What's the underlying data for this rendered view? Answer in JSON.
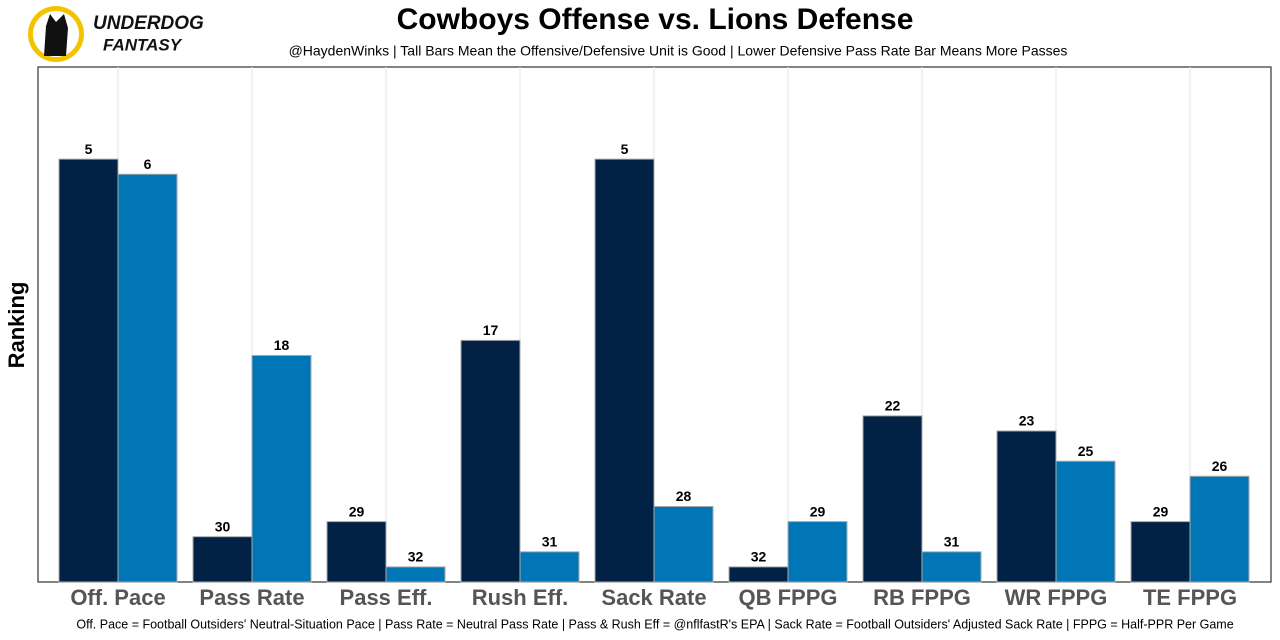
{
  "logo": {
    "line1": "UNDERDOG",
    "line2": "FANTASY"
  },
  "chart_data": {
    "type": "bar",
    "title": "Cowboys Offense vs. Lions Defense",
    "subtitle": "@HaydenWinks | Tall Bars Mean the Offensive/Defensive Unit is Good | Lower Defensive Pass Rate Bar Means More Passes",
    "y_label": "Ranking",
    "caption": "Off. Pace = Football Outsiders' Neutral-Situation Pace | Pass Rate = Neutral Pass Rate | Pass & Rush Eff = @nflfastR's EPA | Sack Rate = Football Outsiders' Adjusted Sack Rate | FPPG = Half-PPR Per Game",
    "categories": [
      "Off. Pace",
      "Pass Rate",
      "Pass Eff.",
      "Rush Eff.",
      "Sack Rate",
      "QB FPPG",
      "RB FPPG",
      "WR FPPG",
      "TE FPPG"
    ],
    "series": [
      {
        "color": "#012244",
        "values": [
          5,
          30,
          29,
          17,
          5,
          32,
          22,
          23,
          29
        ]
      },
      {
        "color": "#0076b6",
        "values": [
          6,
          18,
          32,
          31,
          28,
          29,
          31,
          25,
          26
        ]
      }
    ],
    "ylim": [
      33,
      -1.1
    ],
    "grid": true
  }
}
